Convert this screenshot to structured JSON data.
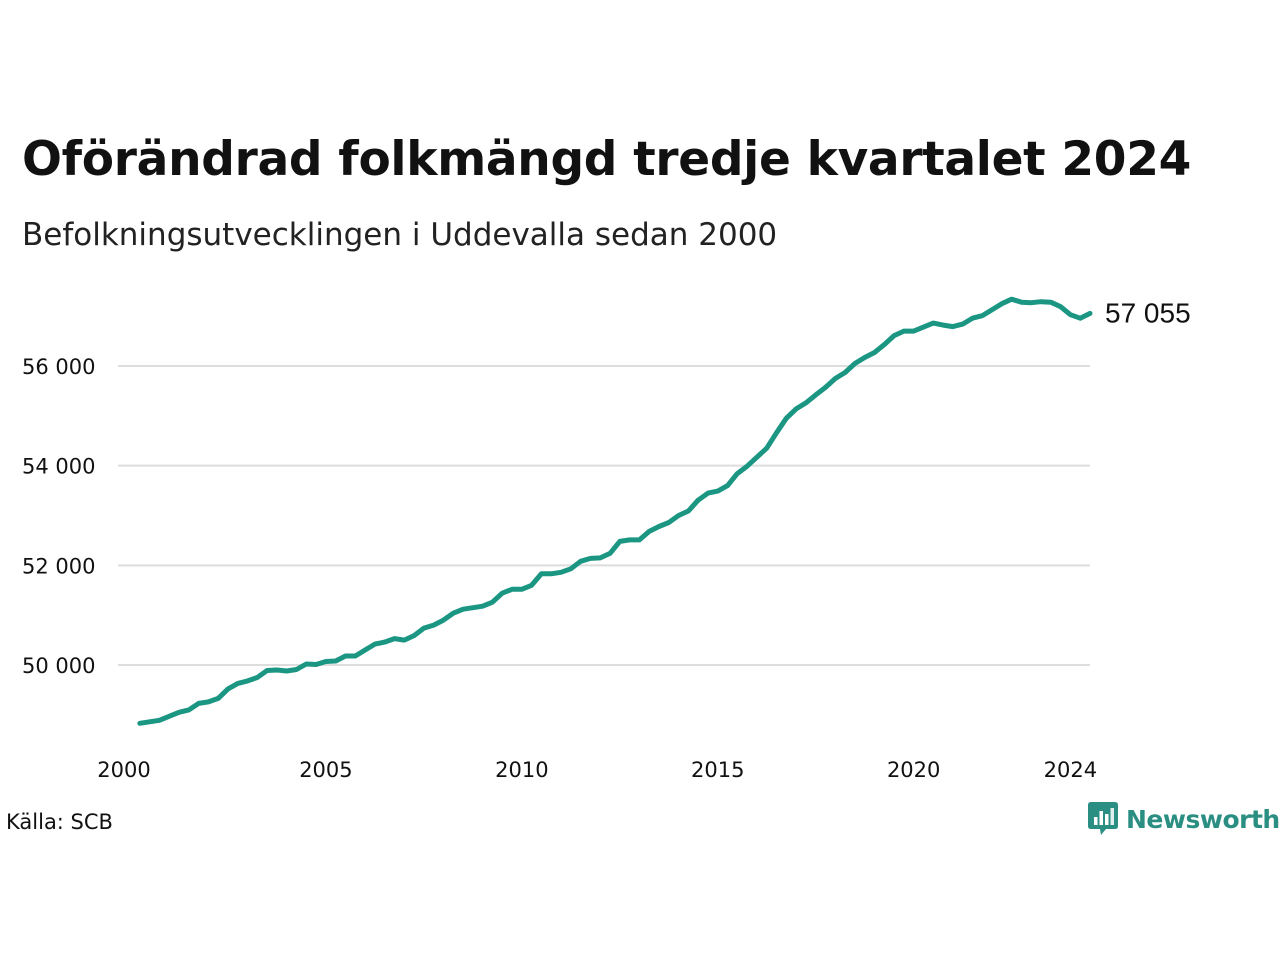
{
  "header": {
    "title": "Oförändrad folkmängd tredje kvartalet 2024",
    "subtitle": "Befolkningsutvecklingen i Uddevalla sedan 2000"
  },
  "footer": {
    "source": "Källa: SCB",
    "brand": "Newsworthy"
  },
  "colors": {
    "line": "#1a9682",
    "grid": "#dddddd",
    "text": "#111111",
    "brand": "#2a8f82"
  },
  "icons": {
    "brand_logo": "newsworthy-logo-icon"
  },
  "chart_data": {
    "type": "line",
    "x_tick_labels": [
      "2000",
      "2005",
      "2010",
      "2015",
      "2020",
      "2024"
    ],
    "x_ticks": [
      2000,
      2005,
      2010,
      2015,
      2020,
      2024
    ],
    "y_tick_labels": [
      "50 000",
      "52 000",
      "54 000",
      "56 000"
    ],
    "y_ticks": [
      50000,
      52000,
      54000,
      56000
    ],
    "ylim": [
      48600,
      57500
    ],
    "xlim": [
      2000,
      2024.5
    ],
    "grid": true,
    "end_label": "57 055",
    "series": [
      {
        "x": [
          2000.25,
          2000.5,
          2000.75,
          2001.0,
          2001.25,
          2001.5,
          2001.75,
          2002.0,
          2002.25,
          2002.5,
          2002.75,
          2003.0,
          2003.25,
          2003.5,
          2003.75,
          2004.0,
          2004.25,
          2004.5,
          2004.75,
          2005.0,
          2005.25,
          2005.5,
          2005.75,
          2006.0,
          2006.25,
          2006.5,
          2006.75,
          2007.0,
          2007.25,
          2007.5,
          2007.75,
          2008.0,
          2008.25,
          2008.5,
          2008.75,
          2009.0,
          2009.25,
          2009.5,
          2009.75,
          2010.0,
          2010.25,
          2010.5,
          2010.75,
          2011.0,
          2011.25,
          2011.5,
          2011.75,
          2012.0,
          2012.25,
          2012.5,
          2012.75,
          2013.0,
          2013.25,
          2013.5,
          2013.75,
          2014.0,
          2014.25,
          2014.5,
          2014.75,
          2015.0,
          2015.25,
          2015.5,
          2015.75,
          2016.0,
          2016.25,
          2016.5,
          2016.75,
          2017.0,
          2017.25,
          2017.5,
          2017.75,
          2018.0,
          2018.25,
          2018.5,
          2018.75,
          2019.0,
          2019.25,
          2019.5,
          2019.75,
          2020.0,
          2020.25,
          2020.5,
          2020.75,
          2021.0,
          2021.25,
          2021.5,
          2021.75,
          2022.0,
          2022.25,
          2022.5,
          2022.75,
          2023.0,
          2023.25,
          2023.5,
          2023.75,
          2024.0,
          2024.25,
          2024.5
        ],
        "values": [
          48830,
          48860,
          48890,
          48970,
          49050,
          49100,
          49230,
          49260,
          49330,
          49520,
          49630,
          49680,
          49750,
          49890,
          49900,
          49880,
          49910,
          50020,
          50010,
          50070,
          50080,
          50180,
          50180,
          50300,
          50420,
          50460,
          50530,
          50500,
          50590,
          50740,
          50800,
          50900,
          51040,
          51120,
          51150,
          51180,
          51260,
          51440,
          51520,
          51520,
          51600,
          51830,
          51830,
          51860,
          51930,
          52080,
          52140,
          52150,
          52240,
          52480,
          52510,
          52510,
          52680,
          52780,
          52860,
          53000,
          53090,
          53310,
          53450,
          53490,
          53600,
          53840,
          53990,
          54170,
          54350,
          54660,
          54950,
          55140,
          55260,
          55420,
          55570,
          55750,
          55870,
          56050,
          56170,
          56270,
          56430,
          56610,
          56700,
          56700,
          56780,
          56860,
          56820,
          56790,
          56840,
          56960,
          57010,
          57130,
          57250,
          57340,
          57280,
          57270,
          57290,
          57280,
          57190,
          57030,
          56960,
          57055
        ]
      }
    ]
  }
}
